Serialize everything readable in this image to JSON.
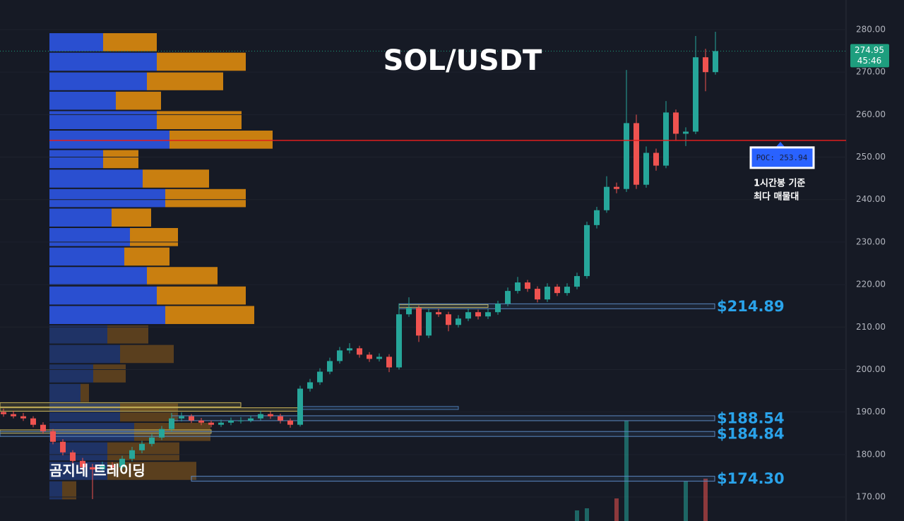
{
  "chart_data": {
    "type": "candlestick",
    "title": "SOL/USDT",
    "watermark": "곰지네 트레이딩",
    "ylim": [
      164.35,
      286.98
    ],
    "yticks": [
      {
        "value": 280,
        "label": "280.00"
      },
      {
        "value": 270,
        "label": "270.00"
      },
      {
        "value": 260,
        "label": "260.00"
      },
      {
        "value": 250,
        "label": "250.00"
      },
      {
        "value": 240,
        "label": "240.00"
      },
      {
        "value": 230,
        "label": "230.00"
      },
      {
        "value": 220,
        "label": "220.00"
      },
      {
        "value": 210,
        "label": "210.00"
      },
      {
        "value": 200,
        "label": "200.00"
      },
      {
        "value": 190,
        "label": "190.00"
      },
      {
        "value": 180,
        "label": "180.00"
      },
      {
        "value": 170,
        "label": "170.00"
      }
    ],
    "up_color": "#26a69a",
    "down_color": "#ef5350",
    "candles": [
      [
        190,
        190.8,
        188.9,
        189.5
      ],
      [
        189.5,
        190.3,
        188.5,
        189
      ],
      [
        189,
        189.8,
        187.9,
        188.5
      ],
      [
        188.5,
        189,
        186.4,
        187
      ],
      [
        187,
        187.6,
        184.9,
        185.5
      ],
      [
        185.5,
        186,
        182.4,
        183
      ],
      [
        183,
        183.6,
        179.8,
        180.5
      ],
      [
        180.5,
        181,
        177.8,
        178.5
      ],
      [
        178.5,
        179.2,
        176.2,
        177
      ],
      [
        177,
        177.8,
        169.5,
        176.5
      ],
      [
        176.5,
        178.3,
        175.8,
        177.5
      ],
      [
        177.5,
        178.2,
        176.3,
        177
      ],
      [
        177,
        179.7,
        176.5,
        179
      ],
      [
        179,
        181.8,
        178.4,
        181
      ],
      [
        181,
        183.2,
        180.3,
        182.5
      ],
      [
        182.5,
        184.8,
        181.9,
        184
      ],
      [
        184,
        186.7,
        183.4,
        186
      ],
      [
        186,
        189.8,
        185.4,
        188.5
      ],
      [
        188.5,
        189.9,
        187.8,
        189
      ],
      [
        189,
        189.5,
        187.4,
        188
      ],
      [
        188,
        188.6,
        186.9,
        187.5
      ],
      [
        187.5,
        188,
        186.4,
        187
      ],
      [
        187,
        188.2,
        186.5,
        187.5
      ],
      [
        187.5,
        188.7,
        186.9,
        188
      ],
      [
        188,
        188.8,
        187.3,
        188
      ],
      [
        188,
        189.2,
        187.6,
        188.5
      ],
      [
        188.5,
        190.3,
        188,
        189.5
      ],
      [
        189.5,
        190.1,
        188.4,
        189
      ],
      [
        189,
        189.6,
        187.3,
        188
      ],
      [
        188,
        188.5,
        186.3,
        187
      ],
      [
        187,
        196.2,
        186.6,
        195.5
      ],
      [
        195.5,
        197.8,
        194.8,
        197
      ],
      [
        197,
        200.3,
        196.4,
        199.5
      ],
      [
        199.5,
        202.8,
        198.9,
        202
      ],
      [
        202,
        205.3,
        201.4,
        204.5
      ],
      [
        204.5,
        206.2,
        203.8,
        205
      ],
      [
        205,
        205.6,
        202.8,
        203.5
      ],
      [
        203.5,
        204.1,
        201.8,
        202.5
      ],
      [
        202.5,
        203.8,
        201.9,
        203
      ],
      [
        203,
        203.6,
        199.4,
        200.5
      ],
      [
        200.5,
        215.5,
        200,
        213
      ],
      [
        213,
        217,
        212.4,
        214.5
      ],
      [
        214.5,
        215.1,
        206.5,
        208
      ],
      [
        208,
        214.3,
        207.4,
        213.5
      ],
      [
        213.5,
        214.3,
        212.4,
        213
      ],
      [
        213,
        213.6,
        209,
        210.5
      ],
      [
        210.5,
        212.8,
        209.9,
        212
      ],
      [
        212,
        214.3,
        211.4,
        213.5
      ],
      [
        213.5,
        214.1,
        211.8,
        212.5
      ],
      [
        212.5,
        214.2,
        211.9,
        213.5
      ],
      [
        213.5,
        216.2,
        212.9,
        215.5
      ],
      [
        215.5,
        219.3,
        214.9,
        218.5
      ],
      [
        218.5,
        221.8,
        217.9,
        220.5
      ],
      [
        220.5,
        221.1,
        218.3,
        219
      ],
      [
        219,
        219.6,
        215.8,
        216.5
      ],
      [
        216.5,
        220.3,
        215.9,
        219.5
      ],
      [
        219.5,
        220.1,
        217.3,
        218
      ],
      [
        218,
        220.3,
        217.4,
        219.5
      ],
      [
        219.5,
        222.8,
        218.9,
        222
      ],
      [
        222,
        234.8,
        221.4,
        234
      ],
      [
        234,
        238.3,
        233.2,
        237.5
      ],
      [
        237.5,
        245.5,
        236.9,
        243
      ],
      [
        243,
        244,
        241.5,
        242.5
      ],
      [
        242.5,
        270.5,
        241.8,
        258
      ],
      [
        258,
        260,
        242.5,
        243.5
      ],
      [
        243.5,
        252.5,
        242.8,
        251
      ],
      [
        251,
        252,
        246.8,
        248
      ],
      [
        248,
        263.2,
        247.4,
        260.5
      ],
      [
        260.5,
        261.2,
        253.8,
        255.5
      ],
      [
        255.5,
        257,
        252.6,
        256
      ],
      [
        256,
        278.5,
        255.4,
        273.5
      ],
      [
        273.5,
        275.5,
        265.5,
        270
      ],
      [
        270,
        279.5,
        269.4,
        274.95
      ]
    ],
    "volume": [
      null,
      null,
      null,
      null,
      null,
      null,
      null,
      null,
      null,
      null,
      null,
      null,
      null,
      null,
      null,
      null,
      null,
      null,
      null,
      null,
      null,
      null,
      null,
      null,
      null,
      null,
      null,
      null,
      null,
      null,
      null,
      null,
      null,
      null,
      null,
      null,
      null,
      null,
      null,
      null,
      null,
      null,
      null,
      null,
      null,
      null,
      null,
      null,
      null,
      null,
      null,
      null,
      null,
      null,
      null,
      null,
      null,
      null,
      15,
      18,
      null,
      null,
      32,
      142,
      null,
      null,
      null,
      null,
      null,
      56,
      null,
      60,
      null
    ],
    "current_price": {
      "value": 274.95,
      "label": "274.95",
      "timer": "45:46",
      "color": "#1e9e7e"
    },
    "poc": {
      "value": 253.94,
      "label": "POC: 253.94",
      "color": "#e01e1e",
      "note": [
        "1시간봉 기준",
        "최다 매물대"
      ]
    },
    "levels": [
      {
        "price": 214.89,
        "label": "$214.89",
        "start": 40
      },
      {
        "price": 188.54,
        "label": "$188.54",
        "start": 17
      },
      {
        "price": 184.84,
        "label": "$184.84",
        "start": 0
      },
      {
        "price": 174.3,
        "label": "$174.30",
        "start": 19
      }
    ],
    "zones": [
      {
        "top": 192.2,
        "bottom": 191.2,
        "start": 0,
        "end": 24,
        "color": "#c9b458"
      },
      {
        "top": 191.0,
        "bottom": 190.2,
        "start": 0,
        "end": 30,
        "color": "#c9b458"
      },
      {
        "top": 191.3,
        "bottom": 190.6,
        "start": 30,
        "end": 46,
        "color": "#4a78b0"
      },
      {
        "top": 185.8,
        "bottom": 185.0,
        "start": 0,
        "end": 21,
        "color": "#c9b458"
      },
      {
        "top": 215.3,
        "bottom": 214.6,
        "start": 40,
        "end": 49,
        "color": "#c9b458"
      }
    ],
    "profile": {
      "bins": [
        279.17,
        274.58,
        269.99,
        265.41,
        260.82,
        256.24,
        251.65,
        247.06,
        242.48,
        237.89,
        233.31,
        228.72,
        224.13,
        219.55,
        214.96,
        210.38,
        205.79,
        201.2,
        196.62,
        192.03,
        187.45,
        182.86,
        178.27,
        173.69,
        169.1
      ],
      "buy": [
        76,
        152,
        138,
        94,
        152,
        170,
        76,
        132,
        164,
        88,
        114,
        106,
        138,
        152,
        164,
        82,
        100,
        62,
        44,
        100,
        120,
        82,
        82,
        18
      ],
      "sell": [
        76,
        126,
        108,
        64,
        120,
        146,
        50,
        94,
        114,
        56,
        68,
        64,
        100,
        126,
        126,
        58,
        76,
        46,
        12,
        82,
        108,
        102,
        126,
        20
      ],
      "buy_color": "#2a4fd0",
      "sell_color": "#c97f10",
      "dim_buy_color": "#1f3366",
      "dim_sell_color": "#5a3f1e",
      "dim_from": 210.38
    }
  }
}
